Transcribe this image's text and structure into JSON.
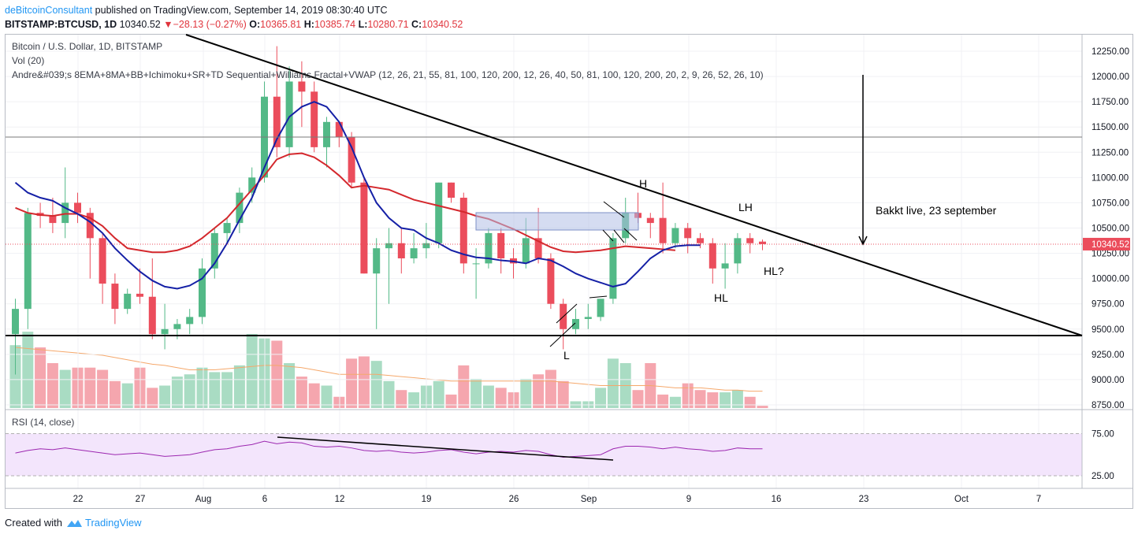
{
  "header": {
    "author": "deBitcoinConsultant",
    "published": "published on TradingView.com, September 14, 2019 08:30:40 UTC"
  },
  "quote": {
    "symbol": "BITSTAMP:BTCUSD, 1D",
    "last": "10340.52",
    "change": "−28.13 (−0.27%)",
    "o_label": "O:",
    "o": "10365.81",
    "h_label": "H:",
    "h": "10385.74",
    "l_label": "L:",
    "l": "10280.71",
    "c_label": "C:",
    "c": "10340.52"
  },
  "legend": {
    "title": "Bitcoin / U.S. Dollar, 1D, BITSTAMP",
    "volume": "Vol (20)",
    "indicator": "Andre&#039;s 8EMA+8MA+BB+Ichimoku+SR+TD Sequential+Williams Fractal+VWAP (12, 26, 21, 55, 81, 100, 120, 200, 12, 26, 40, 50, 81, 100, 120, 200, 20, 2, 9, 26, 52, 26, 10)",
    "rsi": "RSI (14, close)"
  },
  "footer": {
    "created_with": "Created with",
    "brand": "TradingView"
  },
  "colors": {
    "up": "#53b987",
    "down": "#eb4d5c",
    "vol_up": "#a9dcc3",
    "vol_down": "#f5a6ae",
    "ema": "#d4282d",
    "ma": "#1520a6",
    "rsi": "#9c27b0",
    "rsi_band": "#f3e5fc",
    "trend": "#000000",
    "box": "#b3c0e6"
  },
  "chart_data": {
    "type": "candlestick",
    "price_axis": {
      "min": 8750,
      "max": 12250,
      "ticks": [
        12250,
        12000,
        11750,
        11500,
        11250,
        11000,
        10750,
        10500,
        10250,
        10000,
        9750,
        9500,
        9250,
        9000,
        8750
      ],
      "last_price_label": "10340.52"
    },
    "rsi_axis": {
      "ticks": [
        "75.00",
        "25.00"
      ]
    },
    "x_ticks": [
      "22",
      "27",
      "Aug",
      "6",
      "12",
      "19",
      "26",
      "Sep",
      "9",
      "16",
      "23",
      "Oct",
      "7"
    ],
    "candles": [
      {
        "o": 9450,
        "h": 9800,
        "l": 9050,
        "c": 9700
      },
      {
        "o": 9700,
        "h": 10700,
        "l": 9500,
        "c": 10650
      },
      {
        "o": 10650,
        "h": 10750,
        "l": 10500,
        "c": 10620
      },
      {
        "o": 10620,
        "h": 10800,
        "l": 10450,
        "c": 10550
      },
      {
        "o": 10550,
        "h": 11100,
        "l": 10400,
        "c": 10750
      },
      {
        "o": 10750,
        "h": 10850,
        "l": 10550,
        "c": 10650
      },
      {
        "o": 10650,
        "h": 10700,
        "l": 10000,
        "c": 10400
      },
      {
        "o": 10400,
        "h": 10450,
        "l": 9750,
        "c": 9950
      },
      {
        "o": 9950,
        "h": 10050,
        "l": 9550,
        "c": 9700
      },
      {
        "o": 9700,
        "h": 9900,
        "l": 9650,
        "c": 9850
      },
      {
        "o": 9850,
        "h": 10100,
        "l": 9750,
        "c": 9820
      },
      {
        "o": 9820,
        "h": 10200,
        "l": 9400,
        "c": 9450
      },
      {
        "o": 9450,
        "h": 9750,
        "l": 9300,
        "c": 9500
      },
      {
        "o": 9500,
        "h": 9600,
        "l": 9400,
        "c": 9550
      },
      {
        "o": 9550,
        "h": 9700,
        "l": 9450,
        "c": 9620
      },
      {
        "o": 9620,
        "h": 10200,
        "l": 9550,
        "c": 10100
      },
      {
        "o": 10100,
        "h": 10500,
        "l": 10000,
        "c": 10450
      },
      {
        "o": 10450,
        "h": 10600,
        "l": 10350,
        "c": 10550
      },
      {
        "o": 10550,
        "h": 10900,
        "l": 10450,
        "c": 10850
      },
      {
        "o": 10850,
        "h": 11100,
        "l": 10750,
        "c": 11000
      },
      {
        "o": 11000,
        "h": 11950,
        "l": 10950,
        "c": 11800
      },
      {
        "o": 11800,
        "h": 12300,
        "l": 11200,
        "c": 11300
      },
      {
        "o": 11300,
        "h": 12100,
        "l": 11200,
        "c": 11950
      },
      {
        "o": 11950,
        "h": 12150,
        "l": 11500,
        "c": 11850
      },
      {
        "o": 11850,
        "h": 11950,
        "l": 11250,
        "c": 11300
      },
      {
        "o": 11300,
        "h": 11600,
        "l": 11100,
        "c": 11550
      },
      {
        "o": 11550,
        "h": 11550,
        "l": 11300,
        "c": 11400
      },
      {
        "o": 11400,
        "h": 11450,
        "l": 10900,
        "c": 10950
      },
      {
        "o": 10950,
        "h": 11000,
        "l": 10050,
        "c": 10050
      },
      {
        "o": 10050,
        "h": 10400,
        "l": 9500,
        "c": 10300
      },
      {
        "o": 10300,
        "h": 10500,
        "l": 9750,
        "c": 10350
      },
      {
        "o": 10350,
        "h": 10500,
        "l": 10050,
        "c": 10200
      },
      {
        "o": 10200,
        "h": 10450,
        "l": 10150,
        "c": 10300
      },
      {
        "o": 10300,
        "h": 10550,
        "l": 10200,
        "c": 10350
      },
      {
        "o": 10350,
        "h": 10950,
        "l": 10300,
        "c": 10950
      },
      {
        "o": 10950,
        "h": 10950,
        "l": 10750,
        "c": 10800
      },
      {
        "o": 10800,
        "h": 10850,
        "l": 10050,
        "c": 10150
      },
      {
        "o": 10150,
        "h": 10300,
        "l": 9800,
        "c": 10150
      },
      {
        "o": 10150,
        "h": 10500,
        "l": 10100,
        "c": 10450
      },
      {
        "o": 10450,
        "h": 10500,
        "l": 10050,
        "c": 10200
      },
      {
        "o": 10200,
        "h": 10300,
        "l": 10000,
        "c": 10150
      },
      {
        "o": 10150,
        "h": 10600,
        "l": 10100,
        "c": 10400
      },
      {
        "o": 10400,
        "h": 10700,
        "l": 10150,
        "c": 10200
      },
      {
        "o": 10200,
        "h": 10250,
        "l": 9700,
        "c": 9750
      },
      {
        "o": 9750,
        "h": 9800,
        "l": 9300,
        "c": 9500
      },
      {
        "o": 9500,
        "h": 9700,
        "l": 9450,
        "c": 9600
      },
      {
        "o": 9600,
        "h": 9750,
        "l": 9500,
        "c": 9620
      },
      {
        "o": 9620,
        "h": 9800,
        "l": 9580,
        "c": 9800
      },
      {
        "o": 9800,
        "h": 10450,
        "l": 9750,
        "c": 10400
      },
      {
        "o": 10400,
        "h": 10800,
        "l": 10350,
        "c": 10650
      },
      {
        "o": 10650,
        "h": 10850,
        "l": 10550,
        "c": 10600
      },
      {
        "o": 10600,
        "h": 10650,
        "l": 10400,
        "c": 10550
      },
      {
        "o": 10600,
        "h": 10950,
        "l": 10250,
        "c": 10350
      },
      {
        "o": 10350,
        "h": 10550,
        "l": 10300,
        "c": 10500
      },
      {
        "o": 10500,
        "h": 10550,
        "l": 10250,
        "c": 10400
      },
      {
        "o": 10400,
        "h": 10450,
        "l": 10300,
        "c": 10350
      },
      {
        "o": 10350,
        "h": 10400,
        "l": 9950,
        "c": 10100
      },
      {
        "o": 10100,
        "h": 10350,
        "l": 9900,
        "c": 10150
      },
      {
        "o": 10150,
        "h": 10450,
        "l": 10050,
        "c": 10400
      },
      {
        "o": 10400,
        "h": 10450,
        "l": 10250,
        "c": 10350
      },
      {
        "o": 10365.81,
        "h": 10385.74,
        "l": 10280.71,
        "c": 10340.52
      }
    ],
    "volumes": [
      28,
      34,
      27,
      20,
      17,
      18,
      18,
      17,
      12,
      11,
      18,
      9,
      10,
      14,
      15,
      18,
      16,
      16,
      19,
      33,
      31,
      30,
      20,
      14,
      11,
      10,
      5,
      22,
      23,
      21,
      12,
      8,
      7,
      10,
      12,
      6,
      19,
      13,
      10,
      9,
      7,
      13,
      15,
      17,
      12,
      3,
      3,
      9,
      22,
      20,
      8,
      20,
      6,
      5,
      11,
      8,
      7,
      7,
      8,
      5,
      1
    ],
    "ema_8": [
      10700,
      10650,
      10630,
      10620,
      10640,
      10640,
      10600,
      10520,
      10400,
      10300,
      10280,
      10260,
      10260,
      10280,
      10320,
      10400,
      10500,
      10600,
      10740,
      10880,
      11020,
      11180,
      11230,
      11240,
      11200,
      11120,
      11020,
      10900,
      10920,
      10900,
      10880,
      10830,
      10780,
      10750,
      10720,
      10690,
      10660,
      10620,
      10590,
      10540,
      10490,
      10430,
      10370,
      10310,
      10270,
      10260,
      10270,
      10280,
      10300,
      10320,
      10310,
      10300,
      10290,
      10280
    ],
    "ma_8": [
      10950,
      10850,
      10800,
      10770,
      10700,
      10640,
      10560,
      10450,
      10300,
      10180,
      10070,
      9980,
      9920,
      9900,
      9930,
      10000,
      10150,
      10350,
      10580,
      10800,
      11100,
      11380,
      11600,
      11700,
      11750,
      11700,
      11550,
      11300,
      11000,
      10750,
      10600,
      10500,
      10480,
      10400,
      10350,
      10280,
      10240,
      10210,
      10200,
      10180,
      10170,
      10150,
      10200,
      10180,
      10120,
      10050,
      10000,
      9960,
      9920,
      9950,
      10070,
      10200,
      10280,
      10320,
      10330,
      10330
    ],
    "vol_ma": [
      27,
      26.5,
      26,
      25.5,
      25,
      24.5,
      24,
      23.5,
      22.5,
      21.5,
      20.5,
      19.5,
      19,
      18,
      17,
      17,
      17,
      17.5,
      18,
      18.5,
      19,
      19,
      18.5,
      18,
      17,
      16,
      15,
      15,
      15,
      15,
      14.5,
      14,
      13.5,
      13,
      12.5,
      12,
      12,
      12,
      12,
      12,
      12,
      12,
      12,
      12,
      11.5,
      11,
      10.5,
      10,
      10,
      10,
      10,
      10,
      9.5,
      9,
      9,
      9,
      8.5,
      8,
      8,
      7.5,
      7.5
    ],
    "rsi": [
      52,
      55,
      57,
      56,
      58,
      56,
      54,
      52,
      50,
      51,
      52,
      50,
      48,
      49,
      50,
      53,
      56,
      57,
      60,
      62,
      66,
      63,
      65,
      64,
      60,
      59,
      60,
      58,
      55,
      54,
      55,
      53,
      52,
      53,
      55,
      56,
      53,
      51,
      53,
      54,
      53,
      55,
      54,
      50,
      47,
      48,
      49,
      50,
      57,
      60,
      60,
      59,
      57,
      59,
      57,
      56,
      54,
      55,
      58,
      57,
      57
    ],
    "annotations": [
      "H",
      "LH",
      "L",
      "HL",
      "HL?",
      "Bakkt live, 23 september"
    ]
  }
}
